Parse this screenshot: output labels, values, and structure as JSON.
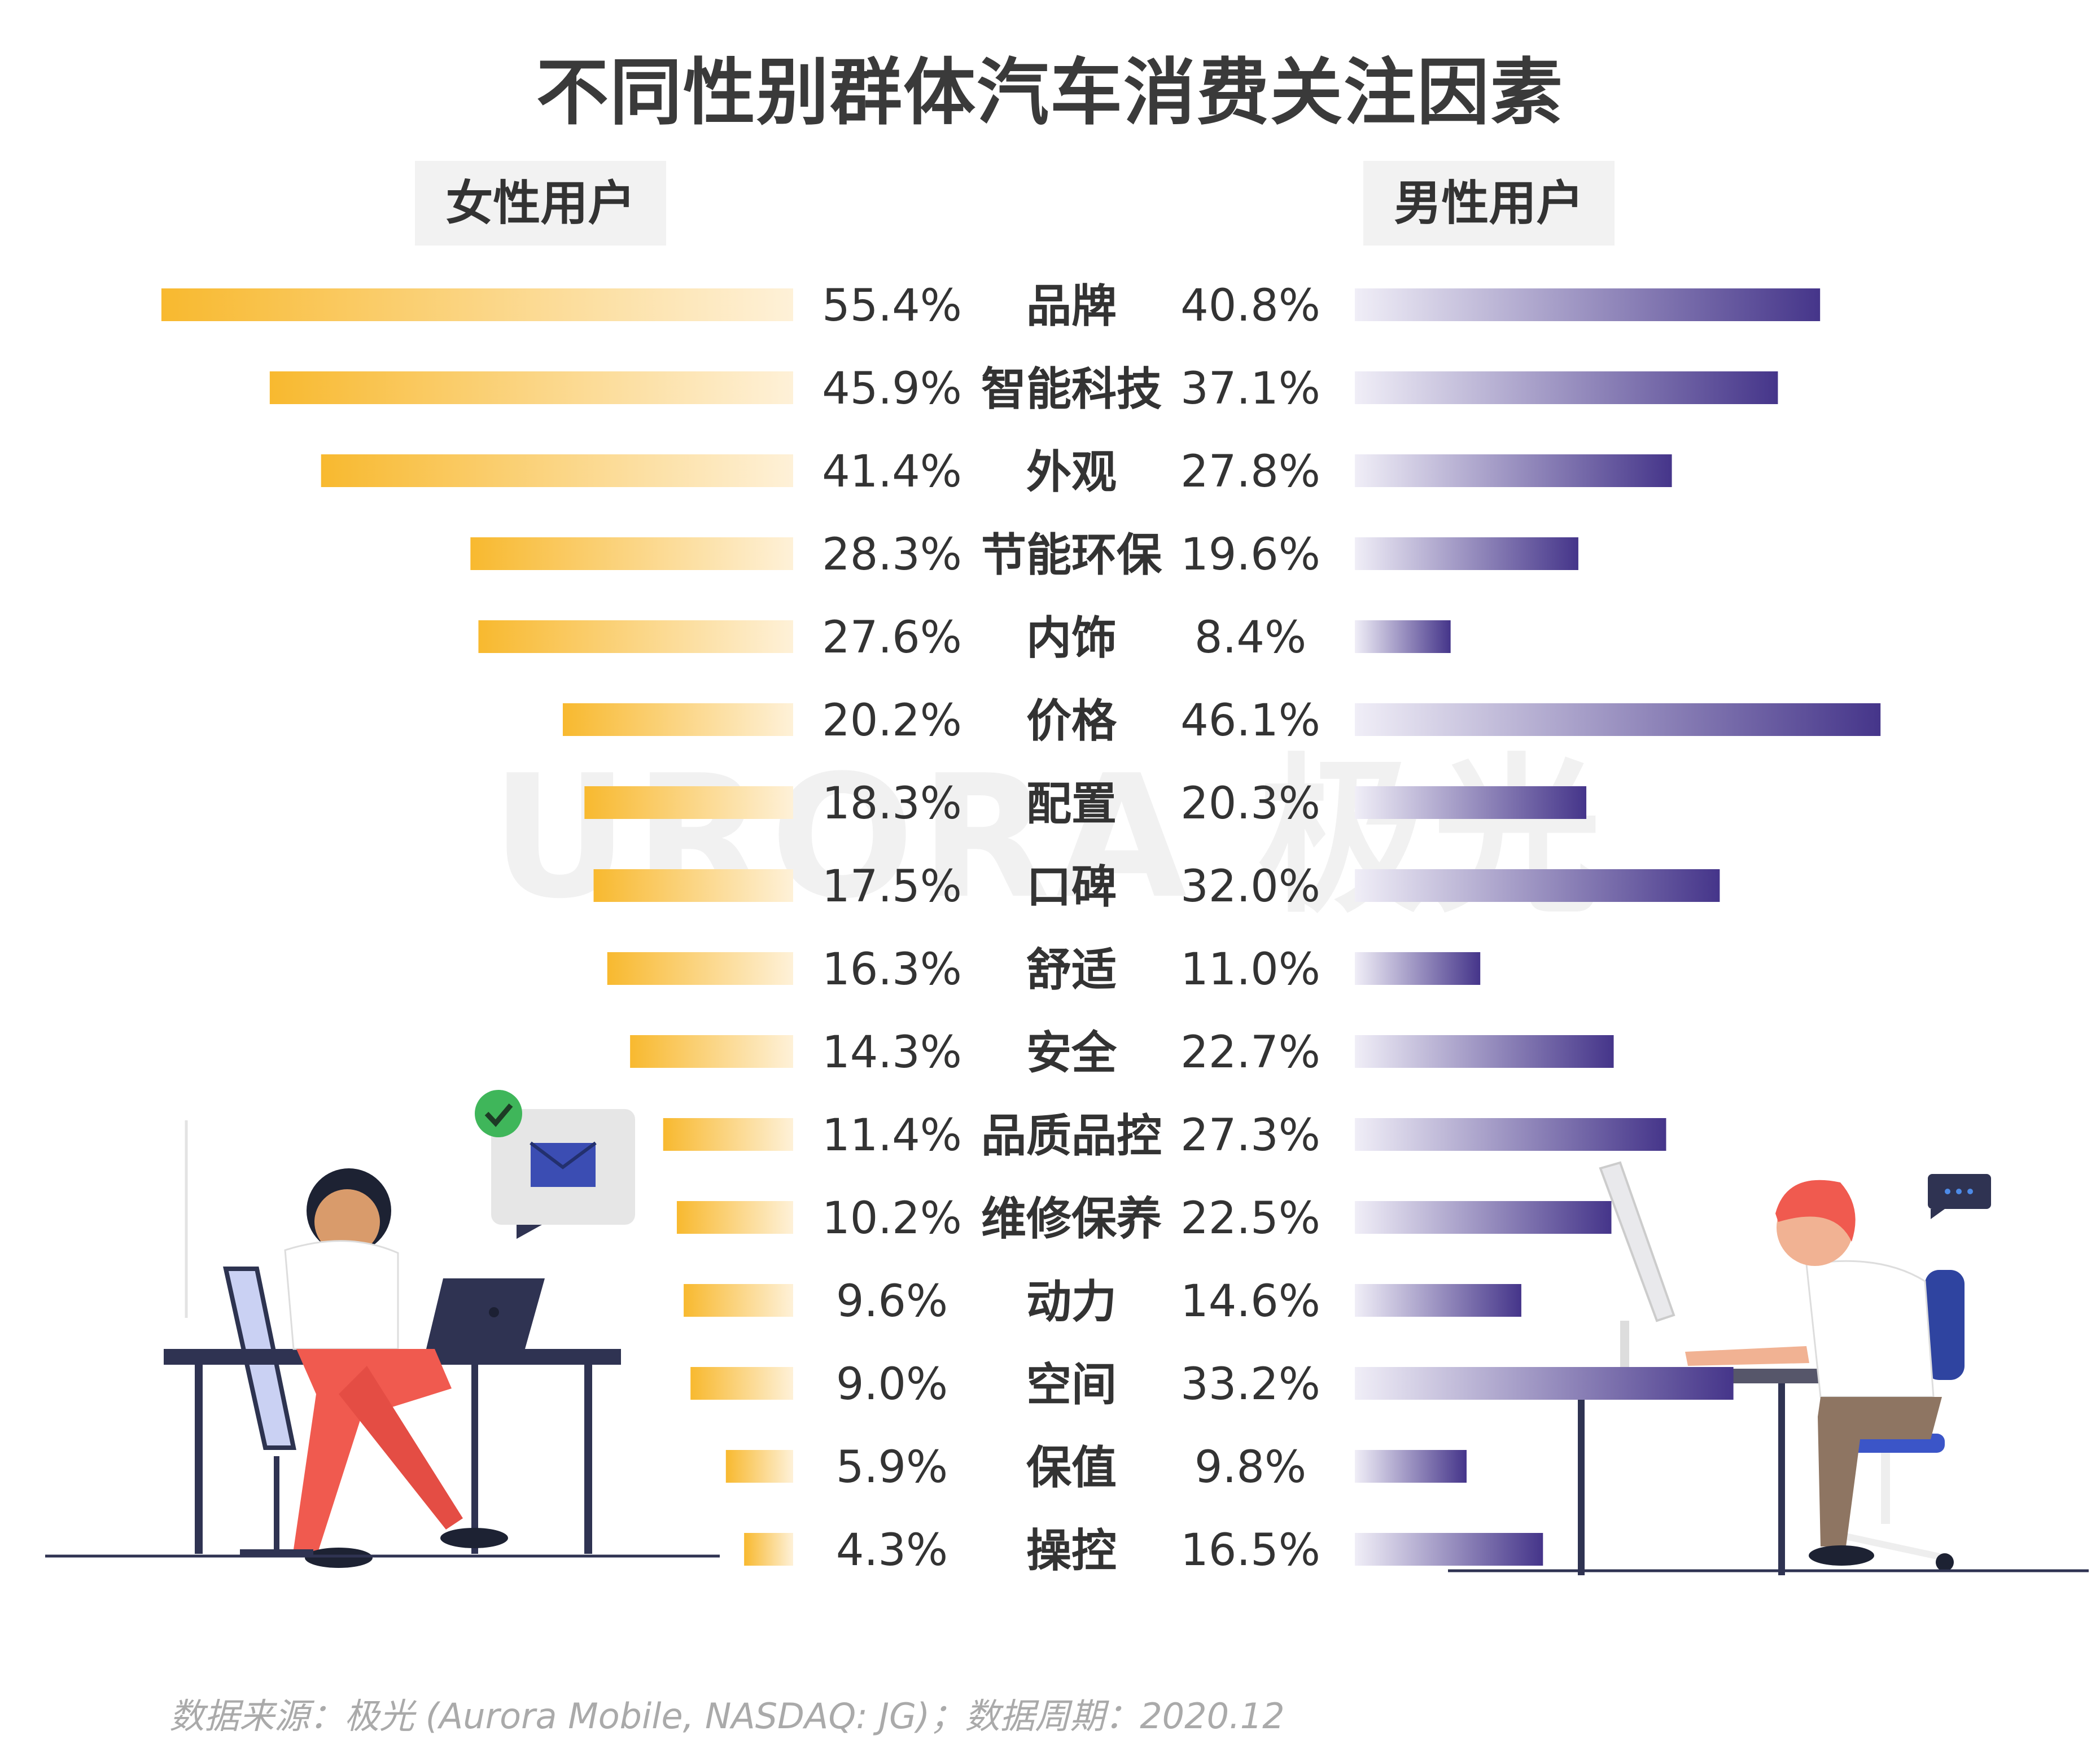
{
  "title": "不同性别群体汽车消费关注因素",
  "groups": {
    "female": "女性用户",
    "male": "男性用户"
  },
  "source": "数据来源：极光 (Aurora Mobile, NASDAQ: JG)；数据周期：2020.12",
  "watermark": "URORA 极光",
  "colors": {
    "female": "#f8b92f",
    "male": "#4a3a8c",
    "text": "#333333"
  },
  "chart_data": {
    "type": "bar",
    "categories": [
      "品牌",
      "智能科技",
      "外观",
      "节能环保",
      "内饰",
      "价格",
      "配置",
      "口碑",
      "舒适",
      "安全",
      "品质品控",
      "维修保养",
      "动力",
      "空间",
      "保值",
      "操控"
    ],
    "series": [
      {
        "name": "女性用户",
        "values": [
          55.4,
          45.9,
          41.4,
          28.3,
          27.6,
          20.2,
          18.3,
          17.5,
          16.3,
          14.3,
          11.4,
          10.2,
          9.6,
          9.0,
          5.9,
          4.3
        ],
        "labels": [
          "55.4%",
          "45.9%",
          "41.4%",
          "28.3%",
          "27.6%",
          "20.2%",
          "18.3%",
          "17.5%",
          "16.3%",
          "14.3%",
          "11.4%",
          "10.2%",
          "9.6%",
          "9.0%",
          "5.9%",
          "4.3%"
        ]
      },
      {
        "name": "男性用户",
        "values": [
          40.8,
          37.1,
          27.8,
          19.6,
          8.4,
          46.1,
          20.3,
          32.0,
          11.0,
          22.7,
          27.3,
          22.5,
          14.6,
          33.2,
          9.8,
          16.5
        ],
        "labels": [
          "40.8%",
          "37.1%",
          "27.8%",
          "19.6%",
          "8.4%",
          "46.1%",
          "20.3%",
          "32.0%",
          "11.0%",
          "22.7%",
          "27.3%",
          "22.5%",
          "14.6%",
          "33.2%",
          "9.8%",
          "16.5%"
        ]
      }
    ],
    "unit": "%"
  }
}
